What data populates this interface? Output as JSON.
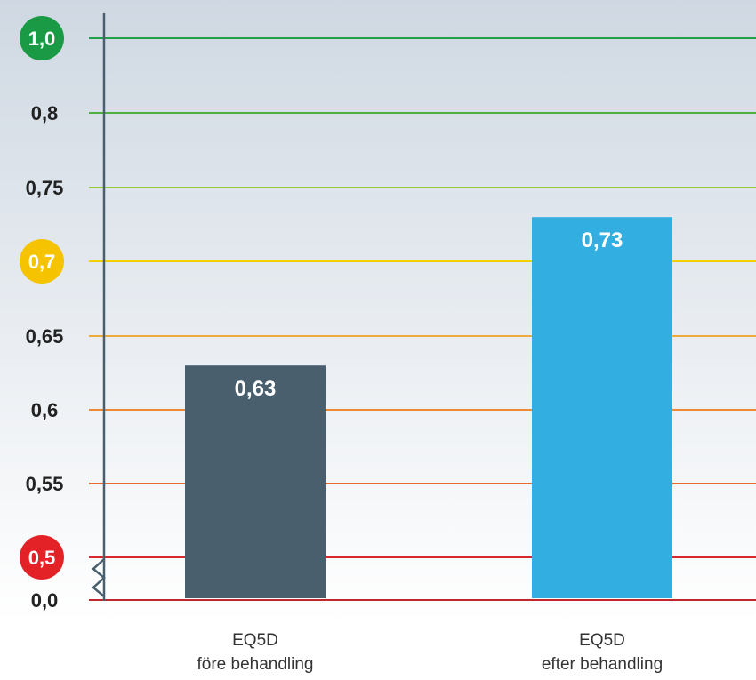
{
  "chart_data": {
    "type": "bar",
    "categories": [
      "EQ5D\nföre behandling",
      "EQ5D\nefter behandling"
    ],
    "values": [
      0.63,
      0.73
    ],
    "value_labels": [
      "0,63",
      "0,73"
    ],
    "bar_colors": [
      "#4a5f6d",
      "#33aee0"
    ],
    "y_ticks": [
      {
        "label": "1,0",
        "color": "#1a9a45",
        "line_color": "#20a048",
        "circle": true
      },
      {
        "label": "0,8",
        "color": "#222222",
        "line_color": "#4caf3e",
        "circle": false
      },
      {
        "label": "0,75",
        "color": "#222222",
        "line_color": "#9ccb3b",
        "circle": false
      },
      {
        "label": "0,7",
        "color": "#f5c300",
        "line_color": "#f2cf00",
        "circle": true
      },
      {
        "label": "0,65",
        "color": "#222222",
        "line_color": "#f0a93b",
        "circle": false
      },
      {
        "label": "0,6",
        "color": "#222222",
        "line_color": "#ef8a34",
        "circle": false
      },
      {
        "label": "0,55",
        "color": "#222222",
        "line_color": "#ea6a2e",
        "circle": false
      },
      {
        "label": "0,5",
        "color": "#e32228",
        "line_color": "#d9282b",
        "circle": true
      },
      {
        "label": "0,0",
        "color": "#222222",
        "line_color": "#c0272d",
        "circle": false
      }
    ],
    "axis_break": true,
    "grid": true,
    "xlabel": "",
    "ylabel": "",
    "title": ""
  },
  "colors": {
    "background_top": "#cfd8e2",
    "background_bottom": "#ffffff",
    "axis": "#4a5f6d"
  }
}
